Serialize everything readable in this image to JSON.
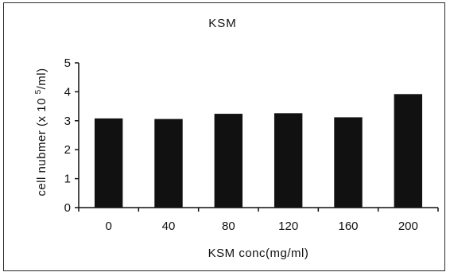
{
  "chart_data": {
    "type": "bar",
    "title": "KSM",
    "xlabel": "KSM conc(mg/ml)",
    "ylabel_main": "cell nubmer (x 10 ",
    "ylabel_sup": "5",
    "ylabel_tail": "/ml)",
    "categories": [
      "0",
      "40",
      "80",
      "120",
      "160",
      "200"
    ],
    "values": [
      3.08,
      3.06,
      3.24,
      3.26,
      3.12,
      3.92
    ],
    "ylim": [
      0,
      5
    ],
    "yticks": [
      "0",
      "1",
      "2",
      "3",
      "4",
      "5"
    ],
    "grid": false,
    "legend": "none",
    "bar_color": "#111111"
  }
}
